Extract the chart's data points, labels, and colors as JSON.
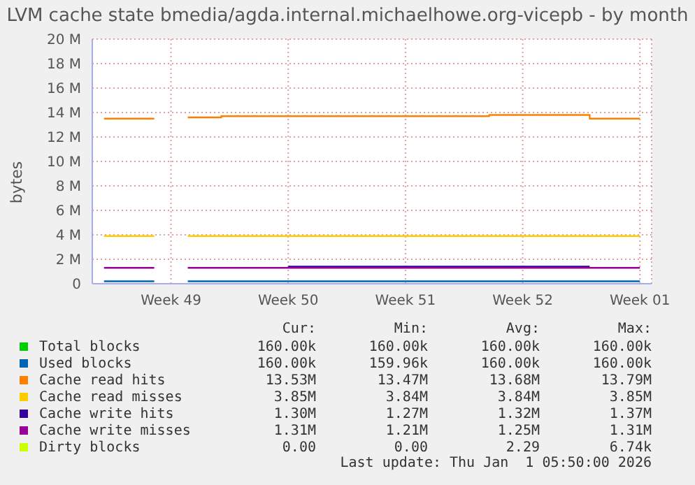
{
  "chart_data": {
    "type": "step",
    "title": "LVM cache state bmedia/agda.internal.michaelhowe.org-vicepb - by month",
    "ylabel": "bytes",
    "categories": [
      null,
      null,
      null,
      null,
      "Week 49",
      null,
      null,
      null,
      null,
      null,
      null,
      "Week 50",
      null,
      null,
      null,
      null,
      null,
      null,
      "Week 51",
      null,
      null,
      null,
      null,
      null,
      null,
      "Week 52",
      null,
      null,
      null,
      null,
      null,
      null,
      "Week 01"
    ],
    "ylim": [
      0,
      20
    ],
    "yticks": [
      {
        "value": 0,
        "label": "0"
      },
      {
        "value": 2,
        "label": "2 M"
      },
      {
        "value": 4,
        "label": "4 M"
      },
      {
        "value": 6,
        "label": "6 M"
      },
      {
        "value": 8,
        "label": "8 M"
      },
      {
        "value": 10,
        "label": "10 M"
      },
      {
        "value": 12,
        "label": "12 M"
      },
      {
        "value": 14,
        "label": "14 M"
      },
      {
        "value": 16,
        "label": "16 M"
      },
      {
        "value": 18,
        "label": "18 M"
      },
      {
        "value": 20,
        "label": "20 M"
      }
    ],
    "grid": true,
    "legend": "bottom",
    "series": [
      {
        "name": "Total blocks",
        "color": "#00cc00",
        "values": [
          null,
          null,
          null,
          null,
          null,
          null,
          null,
          null,
          null,
          null,
          null,
          null,
          null,
          null,
          null,
          null,
          null,
          null,
          null,
          null,
          null,
          null,
          null,
          null,
          null,
          null,
          null,
          null,
          null,
          null,
          null,
          null,
          null
        ]
      },
      {
        "name": "Used blocks",
        "color": "#0066b3",
        "values": [
          0.2,
          0.2,
          0.2,
          0.2,
          null,
          0.2,
          0.2,
          0.2,
          0.2,
          0.2,
          0.2,
          0.2,
          0.2,
          0.2,
          0.2,
          0.2,
          0.2,
          0.2,
          0.2,
          0.2,
          0.2,
          0.2,
          0.2,
          0.2,
          0.2,
          0.2,
          0.2,
          0.2,
          0.2,
          0.2,
          0.2,
          0.2,
          0.2
        ]
      },
      {
        "name": "Cache read hits",
        "color": "#ff8000",
        "values": [
          13.5,
          13.5,
          13.5,
          13.5,
          null,
          13.6,
          13.6,
          13.7,
          13.7,
          13.7,
          13.7,
          13.7,
          13.7,
          13.7,
          13.7,
          13.7,
          13.7,
          13.7,
          13.7,
          13.7,
          13.7,
          13.7,
          13.7,
          13.8,
          13.8,
          13.8,
          13.8,
          13.8,
          13.8,
          13.5,
          13.5,
          13.5,
          13.5
        ]
      },
      {
        "name": "Cache read misses",
        "color": "#ffcc00",
        "values": [
          3.9,
          3.9,
          3.9,
          3.9,
          null,
          3.9,
          3.9,
          3.9,
          3.9,
          3.9,
          3.9,
          3.9,
          3.9,
          3.9,
          3.9,
          3.9,
          3.9,
          3.9,
          3.9,
          3.9,
          3.9,
          3.9,
          3.9,
          3.9,
          3.9,
          3.9,
          3.9,
          3.9,
          3.9,
          3.9,
          3.9,
          3.9,
          3.9
        ]
      },
      {
        "name": "Cache write hits",
        "color": "#330099",
        "values": [
          null,
          null,
          null,
          null,
          null,
          null,
          null,
          null,
          null,
          null,
          null,
          1.4,
          1.4,
          1.4,
          1.4,
          1.4,
          1.4,
          1.4,
          1.4,
          1.4,
          1.4,
          1.4,
          1.4,
          1.4,
          1.4,
          1.4,
          1.4,
          1.4,
          1.4,
          1.4,
          null,
          null,
          null
        ]
      },
      {
        "name": "Cache write misses",
        "color": "#990099",
        "values": [
          1.3,
          1.3,
          1.3,
          1.3,
          null,
          1.3,
          1.3,
          1.3,
          1.3,
          1.3,
          1.3,
          1.3,
          1.3,
          1.3,
          1.3,
          1.3,
          1.3,
          1.3,
          1.3,
          1.3,
          1.3,
          1.3,
          1.3,
          1.3,
          1.3,
          1.3,
          1.3,
          1.3,
          1.3,
          1.3,
          1.3,
          1.3,
          1.3
        ]
      },
      {
        "name": "Dirty blocks",
        "color": "#ccff00",
        "values": [
          null,
          null,
          null,
          null,
          null,
          null,
          null,
          null,
          null,
          null,
          null,
          null,
          null,
          null,
          null,
          null,
          null,
          null,
          null,
          null,
          null,
          null,
          null,
          null,
          null,
          null,
          null,
          null,
          null,
          null,
          null,
          null,
          null
        ]
      }
    ],
    "annotations": [
      "Cur: Min: Avg: Max:",
      "160.00k 160.00k 160.00k 160.00k",
      "160.00k 159.96k 160.00k 160.00k",
      "13.53M 13.47M 13.68M 13.79M",
      "3.85M 3.84M 3.84M 3.85M",
      "1.30M 1.27M 1.32M 1.37M",
      "1.31M 1.21M 1.25M 1.31M",
      "0.00 0.00 2.29 6.74k",
      "Last update: Thu Jan  1 05:50:00 2026"
    ]
  }
}
